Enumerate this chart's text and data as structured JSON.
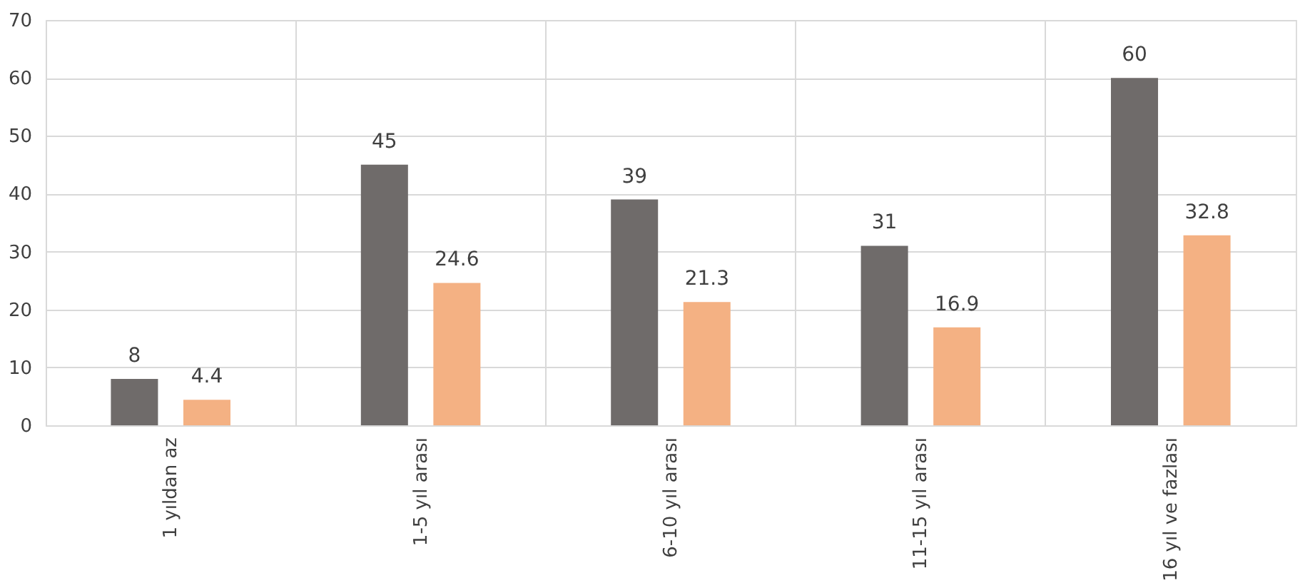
{
  "chart_data": {
    "type": "bar",
    "categories": [
      "1 yıldan az",
      "1-5 yıl arası",
      "6-10 yıl arası",
      "11-15 yıl arası",
      "16 yıl ve fazlası"
    ],
    "series": [
      {
        "color": "#6f6b6a",
        "values": [
          8,
          45,
          39,
          31,
          60
        ]
      },
      {
        "color": "#f4b183",
        "values": [
          4.4,
          24.6,
          21.3,
          16.9,
          32.8
        ]
      }
    ],
    "ylim": [
      0,
      70
    ],
    "yticks": [
      0,
      10,
      20,
      30,
      40,
      50,
      60,
      70
    ],
    "grid": true,
    "data_labels": true,
    "legend": false
  }
}
